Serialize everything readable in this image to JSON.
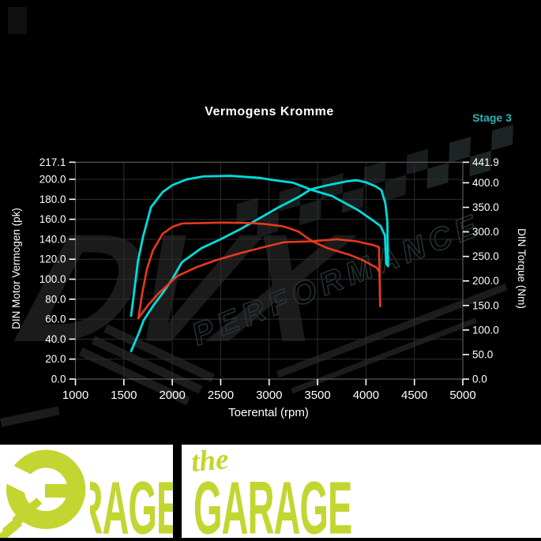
{
  "title": "Vermogens Kromme",
  "stage_label": "Stage 3",
  "watermark": {
    "brand": "DVX",
    "tagline": "PERFORMANCE"
  },
  "axes": {
    "x": {
      "label": "Toerental (rpm)",
      "min": 1000,
      "max": 5000,
      "ticks": [
        1000,
        1500,
        2000,
        2500,
        3000,
        3500,
        4000,
        4500,
        5000
      ]
    },
    "left": {
      "label": "DIN Motor Vermogen (pk)",
      "max": 217.1,
      "ticks": [
        217.1,
        200.0,
        180.0,
        160.0,
        140.0,
        120.0,
        100.0,
        80.0,
        60.0,
        40.0,
        20.0,
        0.0
      ]
    },
    "right": {
      "label": "DIN Torque (Nm)",
      "max": 441.9,
      "ticks": [
        441.9,
        400.0,
        350.0,
        300.0,
        250.0,
        200.0,
        150.0,
        100.0,
        50.0,
        0.0
      ]
    }
  },
  "chart_data": {
    "type": "line",
    "title": "Vermogens Kromme",
    "xlabel": "Toerental (rpm)",
    "ylabel_left": "DIN Motor Vermogen (pk)",
    "ylabel_right": "DIN Torque (Nm)",
    "xlim": [
      1000,
      5000
    ],
    "ylim_left": [
      0,
      217.1
    ],
    "ylim_right": [
      0,
      441.9
    ],
    "grid": true,
    "series": [
      {
        "name": "stage3-torque-nm",
        "axis": "right",
        "color": "#00dcdc",
        "width": 2.8,
        "points": [
          [
            1575,
            129
          ],
          [
            1600,
            168
          ],
          [
            1645,
            240
          ],
          [
            1700,
            291
          ],
          [
            1780,
            350
          ],
          [
            1900,
            381
          ],
          [
            2000,
            395
          ],
          [
            2150,
            407
          ],
          [
            2320,
            413
          ],
          [
            2600,
            414
          ],
          [
            2900,
            410
          ],
          [
            3100,
            404
          ],
          [
            3250,
            400
          ],
          [
            3430,
            386
          ],
          [
            3650,
            373
          ],
          [
            3790,
            358
          ],
          [
            3920,
            344
          ],
          [
            4080,
            322
          ],
          [
            4150,
            312
          ],
          [
            4195,
            293
          ],
          [
            4210,
            234
          ]
        ]
      },
      {
        "name": "stage3-power-pk",
        "axis": "left",
        "color": "#00dcdc",
        "width": 2.8,
        "points": [
          [
            1575,
            28
          ],
          [
            1650,
            45
          ],
          [
            1705,
            59
          ],
          [
            1800,
            73
          ],
          [
            1900,
            86
          ],
          [
            2000,
            100
          ],
          [
            2100,
            117
          ],
          [
            2300,
            131
          ],
          [
            2500,
            140
          ],
          [
            2700,
            150
          ],
          [
            2900,
            161
          ],
          [
            3100,
            172
          ],
          [
            3300,
            182
          ],
          [
            3430,
            190
          ],
          [
            3600,
            194
          ],
          [
            3800,
            198
          ],
          [
            3900,
            199
          ],
          [
            4000,
            197
          ],
          [
            4100,
            193
          ],
          [
            4160,
            189
          ],
          [
            4200,
            176
          ],
          [
            4220,
            158
          ],
          [
            4228,
            113
          ]
        ]
      },
      {
        "name": "original-torque-nm",
        "axis": "right",
        "color": "#e8391d",
        "width": 2.6,
        "points": [
          [
            1650,
            124
          ],
          [
            1690,
            175
          ],
          [
            1740,
            225
          ],
          [
            1800,
            262
          ],
          [
            1900,
            296
          ],
          [
            2000,
            310
          ],
          [
            2100,
            317
          ],
          [
            2300,
            318
          ],
          [
            2530,
            319
          ],
          [
            2800,
            318
          ],
          [
            2950,
            316
          ],
          [
            3150,
            311
          ],
          [
            3300,
            301
          ],
          [
            3445,
            281
          ],
          [
            3600,
            267
          ],
          [
            3835,
            253
          ],
          [
            3950,
            244
          ],
          [
            4055,
            233
          ],
          [
            4110,
            227
          ],
          [
            4140,
            218
          ],
          [
            4146,
            150
          ]
        ]
      },
      {
        "name": "original-power-pk",
        "axis": "left",
        "color": "#e8391d",
        "width": 2.6,
        "points": [
          [
            1650,
            61
          ],
          [
            1750,
            74
          ],
          [
            1850,
            85
          ],
          [
            2050,
            103
          ],
          [
            2250,
            112
          ],
          [
            2450,
            119
          ],
          [
            2700,
            126
          ],
          [
            2900,
            131
          ],
          [
            3150,
            137
          ],
          [
            3445,
            138
          ],
          [
            3700,
            140
          ],
          [
            3900,
            138
          ],
          [
            4080,
            134
          ],
          [
            4135,
            132
          ],
          [
            4148,
            73
          ]
        ]
      }
    ]
  },
  "banner": {
    "script_word": "the",
    "brand_word": "GARAGE"
  },
  "colors": {
    "background": "#000000",
    "curve_stage3": "#00dcdc",
    "curve_original": "#e8391d",
    "stage_text": "#2fb3b0",
    "grid": "#2d2d2d",
    "frame": "#5a5a5a",
    "tick_text": "#ffffff",
    "banner_green": "#c3d531",
    "watermark_dark": "#1c1c1c"
  }
}
